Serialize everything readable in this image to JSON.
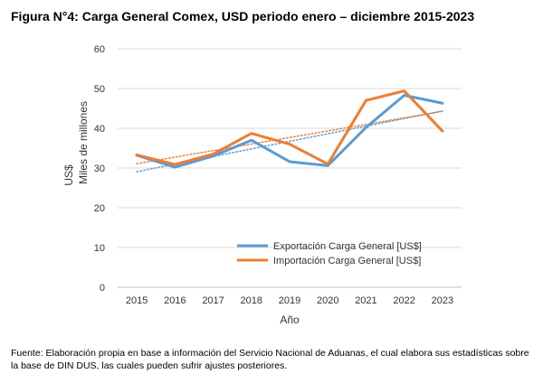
{
  "figure_title": "Figura N°4: Carga General Comex, USD periodo enero – diciembre 2015-2023",
  "source_note": "Fuente: Elaboración propia en base a información del Servicio Nacional de Aduanas, el cual elabora sus estadísticas sobre la base de DIN DUS, las cuales pueden sufrir ajustes posteriores.",
  "chart_data": {
    "type": "line",
    "title": "",
    "xlabel": "Año",
    "ylabel": "Miles de millones",
    "ylabel_unit": "US$",
    "categories": [
      "2015",
      "2016",
      "2017",
      "2018",
      "2019",
      "2020",
      "2021",
      "2022",
      "2023"
    ],
    "ylim": [
      0,
      60
    ],
    "yticks": [
      0,
      10,
      20,
      30,
      40,
      50,
      60
    ],
    "grid": true,
    "legend_position": "inside-lower-right",
    "series": [
      {
        "name": "Exportación Carga General [US$]",
        "color": "#5B9BD5",
        "values": [
          33.2,
          30.2,
          33.0,
          37.0,
          31.6,
          30.6,
          40.2,
          48.3,
          46.3
        ]
      },
      {
        "name": "Importación Carga General [US$]",
        "color": "#ED7D31",
        "values": [
          33.3,
          30.9,
          33.5,
          38.7,
          36.0,
          31.0,
          47.0,
          49.4,
          39.3
        ]
      }
    ],
    "trendlines": [
      {
        "series": "Exportación Carga General [US$]",
        "style": "dotted",
        "color": "#5B9BD5"
      },
      {
        "series": "Importación Carga General [US$]",
        "style": "dotted",
        "color": "#ED7D31"
      }
    ]
  }
}
